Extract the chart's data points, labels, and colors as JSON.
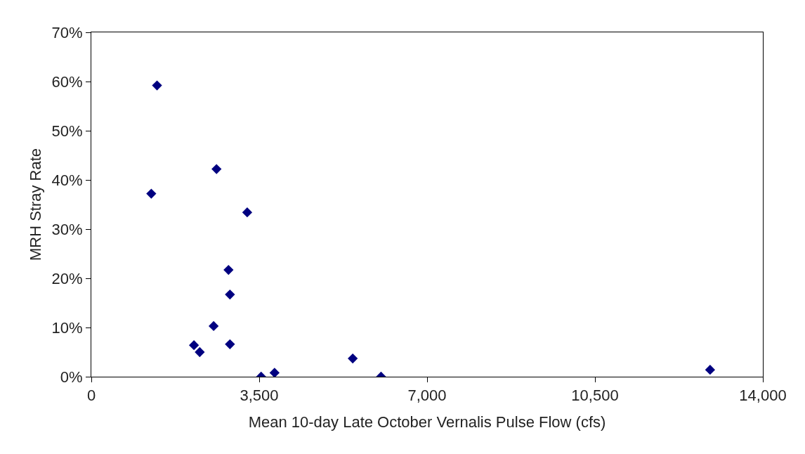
{
  "chart_data": {
    "type": "scatter",
    "xlabel": "Mean 10-day Late October Vernalis Pulse Flow (cfs)",
    "ylabel": "MRH Stray Rate",
    "x": [
      1370,
      1250,
      2610,
      3250,
      2860,
      2890,
      2550,
      2140,
      2260,
      2890,
      3540,
      3820,
      5450,
      6040,
      12900
    ],
    "series": [
      {
        "color": "#000080",
        "values": [
          59.2,
          37.2,
          42.2,
          33.4,
          21.7,
          16.7,
          10.3,
          6.4,
          5.0,
          6.6,
          0,
          0.8,
          3.7,
          0,
          1.4
        ]
      }
    ],
    "marker": "diamond",
    "xlim": [
      0,
      14000
    ],
    "xticks": [
      {
        "value": 0,
        "label": "0"
      },
      {
        "value": 3500,
        "label": "3,500"
      },
      {
        "value": 7000,
        "label": "7,000"
      },
      {
        "value": 10500,
        "label": "10,500"
      },
      {
        "value": 14000,
        "label": "14,000"
      }
    ],
    "ylim": [
      0,
      70
    ],
    "yticks": [
      {
        "value": 0,
        "label": "0%"
      },
      {
        "value": 10,
        "label": "10%"
      },
      {
        "value": 20,
        "label": "20%"
      },
      {
        "value": 30,
        "label": "30%"
      },
      {
        "value": 40,
        "label": "40%"
      },
      {
        "value": 50,
        "label": "50%"
      },
      {
        "value": 60,
        "label": "60%"
      },
      {
        "value": 70,
        "label": "70%"
      }
    ]
  }
}
